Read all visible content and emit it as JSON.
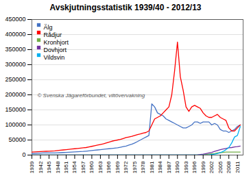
{
  "chart_data": {
    "type": "line",
    "title": "Avskjutningsstatistik 1939/40 - 2012/13",
    "annotation": "© Svenska Jägareförbundet, viltövervakning",
    "x": [
      1939,
      1940,
      1941,
      1942,
      1943,
      1944,
      1945,
      1946,
      1947,
      1948,
      1949,
      1950,
      1951,
      1952,
      1953,
      1954,
      1955,
      1956,
      1957,
      1958,
      1959,
      1960,
      1961,
      1962,
      1963,
      1964,
      1965,
      1966,
      1967,
      1968,
      1969,
      1970,
      1971,
      1972,
      1973,
      1974,
      1975,
      1976,
      1977,
      1978,
      1979,
      1980,
      1981,
      1982,
      1983,
      1984,
      1985,
      1986,
      1987,
      1988,
      1989,
      1990,
      1991,
      1992,
      1993,
      1994,
      1995,
      1996,
      1997,
      1998,
      1999,
      2000,
      2001,
      2002,
      2003,
      2004,
      2005,
      2006,
      2007,
      2008,
      2009,
      2010,
      2011,
      2012
    ],
    "series": [
      {
        "name": "Älg",
        "color": "#4472C4",
        "values": [
          5000,
          5500,
          6000,
          6500,
          7000,
          7000,
          7000,
          7000,
          7000,
          7500,
          8000,
          8500,
          9000,
          9500,
          10000,
          10500,
          11000,
          11500,
          12000,
          13000,
          14000,
          15000,
          16000,
          17000,
          18000,
          19000,
          20000,
          21000,
          22000,
          23000,
          24000,
          26000,
          28000,
          30000,
          33000,
          36000,
          40000,
          45000,
          50000,
          55000,
          60000,
          65000,
          170000,
          160000,
          140000,
          135000,
          130000,
          120000,
          115000,
          110000,
          105000,
          100000,
          95000,
          90000,
          90000,
          95000,
          100000,
          110000,
          110000,
          105000,
          110000,
          110000,
          110000,
          100000,
          105000,
          100000,
          85000,
          80000,
          80000,
          75000,
          80000,
          85000,
          95000,
          100000
        ]
      },
      {
        "name": "Rådjur",
        "color": "#FF0000",
        "values": [
          10000,
          10500,
          11000,
          11500,
          12000,
          12500,
          13000,
          13500,
          14000,
          15000,
          16000,
          17000,
          18000,
          19000,
          20000,
          21000,
          22000,
          23000,
          24000,
          25000,
          27000,
          29000,
          31000,
          33000,
          35000,
          37000,
          40000,
          43000,
          46000,
          48000,
          50000,
          52000,
          55000,
          58000,
          60000,
          62000,
          65000,
          68000,
          70000,
          73000,
          75000,
          80000,
          100000,
          120000,
          125000,
          130000,
          140000,
          150000,
          160000,
          200000,
          280000,
          375000,
          260000,
          215000,
          160000,
          145000,
          160000,
          165000,
          160000,
          155000,
          140000,
          130000,
          125000,
          125000,
          130000,
          135000,
          125000,
          120000,
          115000,
          90000,
          80000,
          80000,
          90000,
          100000
        ]
      },
      {
        "name": "Kronhjort",
        "color": "#70AD47",
        "values": [
          500,
          500,
          500,
          500,
          500,
          500,
          500,
          500,
          500,
          500,
          500,
          500,
          500,
          500,
          500,
          500,
          500,
          500,
          500,
          500,
          500,
          500,
          500,
          500,
          500,
          500,
          500,
          500,
          500,
          500,
          500,
          500,
          500,
          500,
          500,
          500,
          500,
          500,
          500,
          500,
          500,
          500,
          500,
          500,
          500,
          500,
          500,
          500,
          500,
          500,
          500,
          500,
          500,
          500,
          500,
          500,
          500,
          500,
          500,
          500,
          1000,
          2000,
          3000,
          4000,
          5000,
          7000,
          8000,
          9000,
          10000,
          10000,
          10000,
          10000,
          10000,
          10000
        ]
      },
      {
        "name": "Dovhjort",
        "color": "#7030A0",
        "values": [
          500,
          500,
          500,
          500,
          500,
          500,
          500,
          500,
          500,
          500,
          500,
          500,
          500,
          500,
          500,
          500,
          500,
          500,
          500,
          500,
          500,
          500,
          500,
          500,
          500,
          500,
          500,
          500,
          500,
          500,
          500,
          500,
          500,
          500,
          500,
          500,
          500,
          500,
          500,
          500,
          500,
          500,
          500,
          500,
          500,
          500,
          500,
          500,
          500,
          500,
          500,
          500,
          500,
          500,
          500,
          500,
          500,
          500,
          1000,
          2000,
          3000,
          5000,
          7000,
          9000,
          12000,
          15000,
          18000,
          20000,
          22000,
          24000,
          25000,
          27000,
          28000,
          30000
        ]
      },
      {
        "name": "Vildsvin",
        "color": "#00B0F0",
        "values": [
          0,
          0,
          0,
          0,
          0,
          0,
          0,
          0,
          0,
          0,
          0,
          0,
          0,
          0,
          0,
          0,
          0,
          0,
          0,
          0,
          0,
          0,
          0,
          0,
          0,
          0,
          0,
          0,
          0,
          0,
          0,
          0,
          0,
          0,
          0,
          0,
          0,
          0,
          0,
          0,
          0,
          0,
          0,
          0,
          0,
          0,
          0,
          0,
          0,
          0,
          0,
          0,
          0,
          0,
          0,
          0,
          0,
          0,
          0,
          0,
          0,
          500,
          1000,
          2000,
          3000,
          5000,
          8000,
          12000,
          18000,
          25000,
          40000,
          60000,
          65000,
          95000
        ]
      }
    ],
    "xlim": [
      1939,
      2013
    ],
    "xticks": [
      1939,
      1942,
      1945,
      1948,
      1951,
      1954,
      1957,
      1960,
      1963,
      1966,
      1969,
      1972,
      1975,
      1978,
      1981,
      1984,
      1987,
      1990,
      1993,
      1996,
      1999,
      2002,
      2005,
      2008,
      2011
    ],
    "ylim": [
      0,
      450000
    ],
    "yticks": [
      0,
      50000,
      100000,
      150000,
      200000,
      250000,
      300000,
      350000,
      400000,
      450000
    ],
    "grid": "y",
    "legend": "upper left"
  }
}
